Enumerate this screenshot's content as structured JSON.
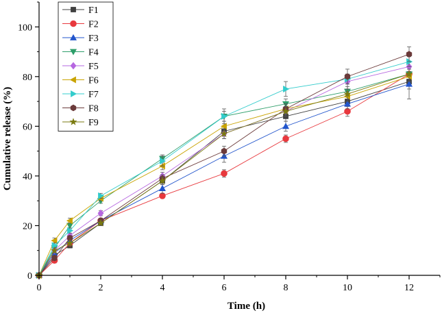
{
  "chart_data": {
    "type": "line",
    "title": "",
    "xlabel": "Time (h)",
    "ylabel": "Cumulative release (%)",
    "xlim": [
      0,
      13
    ],
    "ylim": [
      0,
      110
    ],
    "xticks": [
      0,
      2,
      4,
      6,
      8,
      10,
      12
    ],
    "yticks": [
      0,
      20,
      40,
      60,
      80,
      100
    ],
    "x": [
      0,
      0.5,
      1,
      2,
      4,
      6,
      8,
      10,
      12
    ],
    "legend_position": "top-left",
    "grid": false,
    "series": [
      {
        "name": "F1",
        "color": "#404040",
        "marker": "square",
        "values": [
          0,
          8,
          12,
          21,
          38,
          58,
          64,
          70,
          78
        ],
        "errors": [
          0,
          1,
          1,
          1,
          1.5,
          2,
          2,
          2,
          3
        ]
      },
      {
        "name": "F2",
        "color": "#e8383d",
        "marker": "circle",
        "values": [
          0,
          6,
          13,
          22,
          32,
          41,
          55,
          66,
          81
        ],
        "errors": [
          0,
          1,
          1,
          1,
          1,
          1.5,
          1.5,
          2,
          3
        ]
      },
      {
        "name": "F3",
        "color": "#2255cc",
        "marker": "triangle-up",
        "values": [
          0,
          9,
          14,
          22,
          35,
          48,
          60,
          69,
          77
        ],
        "errors": [
          0,
          1,
          1,
          1,
          2,
          2.5,
          2,
          2,
          6
        ]
      },
      {
        "name": "F4",
        "color": "#2e9e6a",
        "marker": "triangle-down",
        "values": [
          0,
          11,
          20,
          30,
          47,
          64,
          69,
          74,
          81
        ],
        "errors": [
          0,
          1,
          1,
          1,
          1.5,
          2,
          2,
          2,
          2
        ]
      },
      {
        "name": "F5",
        "color": "#b667e0",
        "marker": "diamond",
        "values": [
          0,
          10,
          16,
          25,
          40,
          57,
          66,
          78,
          84
        ],
        "errors": [
          0,
          1,
          1,
          1,
          1.5,
          2,
          2,
          3,
          2
        ]
      },
      {
        "name": "F6",
        "color": "#c9a300",
        "marker": "triangle-left",
        "values": [
          0,
          14,
          22,
          31,
          44,
          60,
          67,
          72,
          80
        ],
        "errors": [
          0,
          1,
          1,
          1,
          1.5,
          2,
          2,
          2,
          2
        ]
      },
      {
        "name": "F7",
        "color": "#33cccc",
        "marker": "triangle-right",
        "values": [
          0,
          12,
          18,
          32,
          46,
          64,
          75,
          79,
          86
        ],
        "errors": [
          0,
          1,
          1,
          1,
          2,
          3,
          3,
          2,
          2
        ]
      },
      {
        "name": "F8",
        "color": "#6b3a3a",
        "marker": "hexagon",
        "values": [
          0,
          7,
          15,
          22,
          39,
          50,
          67,
          80,
          89
        ],
        "errors": [
          0,
          1,
          1,
          1,
          1.5,
          2,
          2,
          3,
          3
        ]
      },
      {
        "name": "F9",
        "color": "#7a7a10",
        "marker": "star",
        "values": [
          0,
          10,
          13,
          21,
          38,
          57,
          66,
          73,
          81
        ],
        "errors": [
          0,
          1,
          1,
          1,
          1.5,
          2,
          2,
          2,
          2
        ]
      }
    ]
  }
}
